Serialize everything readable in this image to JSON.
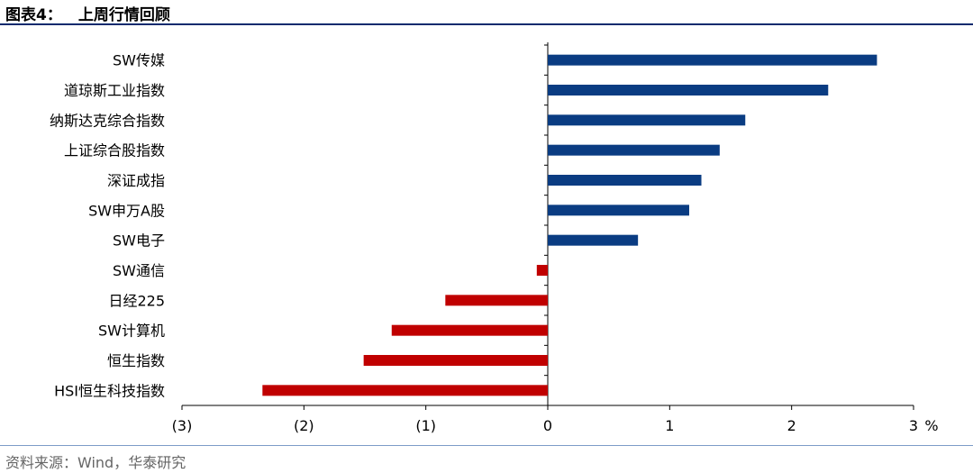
{
  "header": {
    "figure_label": "图表4：",
    "title": "上周行情回顾"
  },
  "footer": {
    "source": "资料来源：Wind，华泰研究"
  },
  "colors": {
    "positive_bar": "#0a3c82",
    "negative_bar": "#c00000",
    "axis": "#000000",
    "rule": "#0a2a6e"
  },
  "chart_data": {
    "type": "bar",
    "orientation": "horizontal",
    "title": "",
    "xlabel": "",
    "ylabel": "",
    "unit_label": "%",
    "xlim": [
      -3,
      3
    ],
    "xticks": [
      -3,
      -2,
      -1,
      0,
      1,
      2,
      3
    ],
    "xtick_labels": [
      "(3)",
      "(2)",
      "(1)",
      "0",
      "1",
      "2",
      "3"
    ],
    "grid": false,
    "categories": [
      "SW传媒",
      "道琼斯工业指数",
      "纳斯达克综合指数",
      "上证综合股指数",
      "深证成指",
      "SW申万A股",
      "SW电子",
      "SW通信",
      "日经225",
      "SW计算机",
      "恒生指数",
      "HSI恒生科技指数"
    ],
    "values": [
      2.7,
      2.3,
      1.62,
      1.41,
      1.26,
      1.16,
      0.74,
      -0.09,
      -0.84,
      -1.28,
      -1.51,
      -2.34
    ]
  }
}
